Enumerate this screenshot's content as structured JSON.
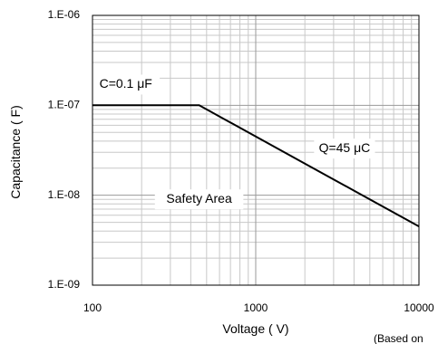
{
  "chart_data": {
    "type": "line",
    "x_scale": "log",
    "y_scale": "log",
    "xlim": [
      100,
      10000
    ],
    "ylim": [
      1e-09,
      1e-06
    ],
    "grid": true,
    "xlabel": "Voltage ( V)",
    "ylabel": "Capacitance ( F)",
    "x_tick_labels": [
      {
        "value": 100,
        "label": "100"
      },
      {
        "value": 1000,
        "label": "1000"
      },
      {
        "value": 10000,
        "label": "10000"
      }
    ],
    "y_tick_labels": [
      {
        "value": 1e-06,
        "label": "1.E-06"
      },
      {
        "value": 1e-07,
        "label": "1.E-07"
      },
      {
        "value": 1e-08,
        "label": "1.E-08"
      },
      {
        "value": 1e-09,
        "label": "1.E-09"
      }
    ],
    "series": [
      {
        "x": [
          100,
          450,
          600,
          1000,
          2000,
          3000,
          4000,
          6000,
          10000
        ],
        "y": [
          1e-07,
          1e-07,
          7.5e-08,
          4.5e-08,
          2.25e-08,
          1.5e-08,
          1.125e-08,
          7.5e-09,
          4.5e-09
        ]
      }
    ],
    "annotations": [
      {
        "text": "C=0.1 μF",
        "x": 160,
        "y": 1.7e-07
      },
      {
        "text": "Q=45 μC",
        "x": 3500,
        "y": 3.3e-08
      },
      {
        "text": "Safety Area",
        "x": 450,
        "y": 9e-09
      }
    ],
    "footnote": "(Based on"
  }
}
